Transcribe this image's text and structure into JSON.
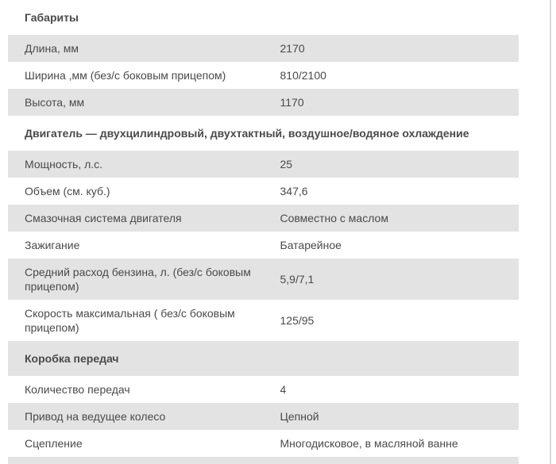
{
  "theme": {
    "page_bg": "#ffffff",
    "stripe_bg": "#e3e3e3",
    "text_color": "#4a4a4a",
    "heading_color": "#333333",
    "border_color": "#d9d9d9"
  },
  "spec_table": {
    "rows": [
      {
        "type": "section",
        "label": "Габариты"
      },
      {
        "type": "spec",
        "label": "Длина, мм",
        "value": "2170"
      },
      {
        "type": "spec",
        "label": "Ширина ,мм (без/с боковым прицепом)",
        "value": "810/2100"
      },
      {
        "type": "spec",
        "label": "Высота, мм",
        "value": "1170"
      },
      {
        "type": "section",
        "label": "Двигатель — двухцилиндровый, двухтактный, воздушное/водяное охлаждение"
      },
      {
        "type": "spec",
        "label": "Мощность, л.с.",
        "value": "25"
      },
      {
        "type": "spec",
        "label": "Объем (см. куб.)",
        "value": "347,6"
      },
      {
        "type": "spec",
        "label": "Смазочная система двигателя",
        "value": "Совместно с маслом"
      },
      {
        "type": "spec",
        "label": "Зажигание",
        "value": "Батарейное"
      },
      {
        "type": "spec",
        "label": "Средний расход бензина, л. (без/с боковым прицепом)",
        "value": "5,9/7,1"
      },
      {
        "type": "spec",
        "label": "Скорость максимальная ( без/с боковым прицепом)",
        "value": "125/95"
      },
      {
        "type": "section",
        "label": "Коробка передач"
      },
      {
        "type": "spec",
        "label": "Количество передач",
        "value": "4"
      },
      {
        "type": "spec",
        "label": "Привод на ведущее колесо",
        "value": "Цепной"
      },
      {
        "type": "spec",
        "label": "Сцепление",
        "value": "Многодисковое, в масляной ванне"
      }
    ]
  }
}
